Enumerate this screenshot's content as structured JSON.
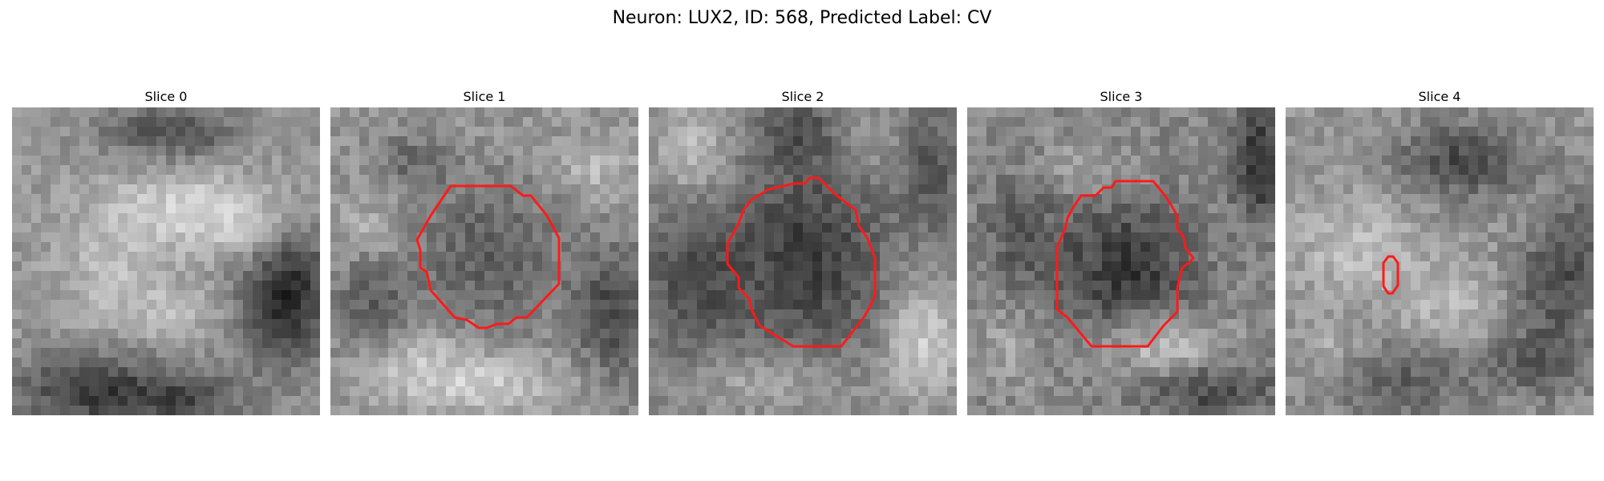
{
  "figure": {
    "title": "Neuron: LUX2, ID: 568, Predicted Label: CV"
  },
  "slices": [
    {
      "title": "Slice 0",
      "has_contour": false
    },
    {
      "title": "Slice 1",
      "has_contour": true
    },
    {
      "title": "Slice 2",
      "has_contour": true
    },
    {
      "title": "Slice 3",
      "has_contour": true
    },
    {
      "title": "Slice 4",
      "has_contour": true
    }
  ],
  "colors": {
    "contour": "#ff1a1a",
    "background": "#ffffff"
  }
}
